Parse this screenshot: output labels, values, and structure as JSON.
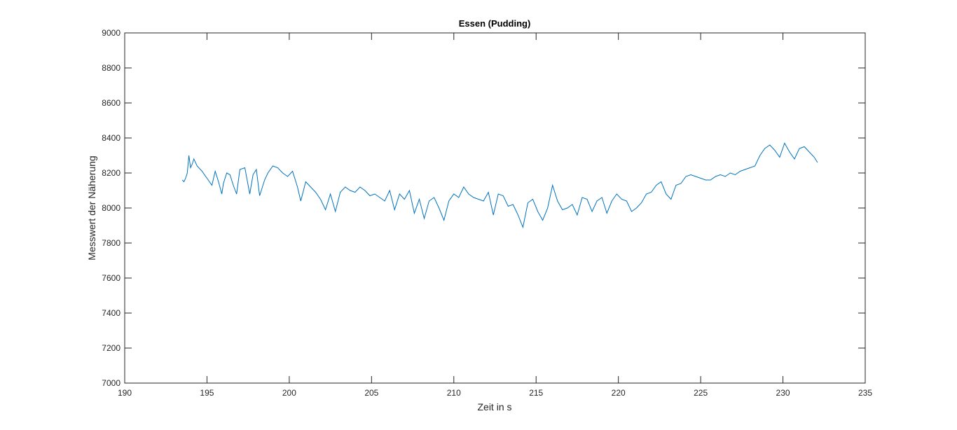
{
  "chart_data": {
    "type": "line",
    "title": "Essen (Pudding)",
    "xlabel": "Zeit in s",
    "ylabel": "Messwert der Näherung",
    "xlim": [
      190,
      235
    ],
    "ylim": [
      7000,
      9000
    ],
    "xticks": [
      190,
      195,
      200,
      205,
      210,
      215,
      220,
      225,
      230,
      235
    ],
    "yticks": [
      7000,
      7200,
      7400,
      7600,
      7800,
      8000,
      8200,
      8400,
      8600,
      8800,
      9000
    ],
    "grid": false,
    "series": [
      {
        "color": "#0072BD",
        "x": [
          193.5,
          193.6,
          193.7,
          193.8,
          193.9,
          194.0,
          194.1,
          194.2,
          194.4,
          194.7,
          195.0,
          195.3,
          195.5,
          195.7,
          195.9,
          196.0,
          196.2,
          196.4,
          196.6,
          196.8,
          197.0,
          197.3,
          197.6,
          197.8,
          198.0,
          198.2,
          198.5,
          198.7,
          199.0,
          199.3,
          199.6,
          199.9,
          200.2,
          200.5,
          200.7,
          201.0,
          201.3,
          201.6,
          201.9,
          202.2,
          202.5,
          202.8,
          203.1,
          203.4,
          203.7,
          204.0,
          204.3,
          204.6,
          204.9,
          205.2,
          205.5,
          205.8,
          206.1,
          206.4,
          206.7,
          207.0,
          207.3,
          207.6,
          207.9,
          208.2,
          208.5,
          208.8,
          209.1,
          209.4,
          209.7,
          210.0,
          210.3,
          210.6,
          210.9,
          211.2,
          211.5,
          211.8,
          212.1,
          212.4,
          212.7,
          213.0,
          213.3,
          213.6,
          213.9,
          214.2,
          214.5,
          214.8,
          215.1,
          215.4,
          215.7,
          216.0,
          216.3,
          216.6,
          216.9,
          217.2,
          217.5,
          217.8,
          218.1,
          218.4,
          218.7,
          219.0,
          219.3,
          219.6,
          219.9,
          220.2,
          220.5,
          220.8,
          221.1,
          221.4,
          221.7,
          222.0,
          222.3,
          222.6,
          222.9,
          223.2,
          223.5,
          223.8,
          224.1,
          224.4,
          224.7,
          225.0,
          225.3,
          225.6,
          225.9,
          226.2,
          226.5,
          226.8,
          227.1,
          227.4,
          227.7,
          228.0,
          228.3,
          228.6,
          228.9,
          229.2,
          229.5,
          229.8,
          230.1,
          230.4,
          230.7,
          231.0,
          231.3,
          231.6,
          231.9,
          232.1
        ],
        "y": [
          8160,
          8150,
          8170,
          8200,
          8300,
          8230,
          8250,
          8280,
          8240,
          8210,
          8170,
          8130,
          8210,
          8150,
          8080,
          8140,
          8200,
          8190,
          8130,
          8080,
          8220,
          8230,
          8080,
          8190,
          8220,
          8070,
          8160,
          8200,
          8240,
          8230,
          8200,
          8180,
          8210,
          8120,
          8040,
          8150,
          8120,
          8090,
          8050,
          7990,
          8080,
          7980,
          8090,
          8120,
          8100,
          8090,
          8120,
          8100,
          8070,
          8080,
          8060,
          8040,
          8100,
          7990,
          8080,
          8050,
          8100,
          7970,
          8050,
          7940,
          8040,
          8060,
          8000,
          7930,
          8040,
          8080,
          8060,
          8120,
          8080,
          8060,
          8050,
          8040,
          8090,
          7960,
          8080,
          8070,
          8010,
          8020,
          7960,
          7890,
          8030,
          8050,
          7980,
          7930,
          8000,
          8130,
          8040,
          7990,
          8000,
          8020,
          7960,
          8060,
          8050,
          7980,
          8040,
          8060,
          7970,
          8040,
          8080,
          8050,
          8040,
          7980,
          8000,
          8030,
          8080,
          8090,
          8130,
          8150,
          8080,
          8050,
          8130,
          8140,
          8180,
          8190,
          8180,
          8170,
          8160,
          8160,
          8180,
          8190,
          8180,
          8200,
          8190,
          8210,
          8220,
          8230,
          8240,
          8300,
          8340,
          8360,
          8330,
          8290,
          8370,
          8320,
          8280,
          8340,
          8350,
          8320,
          8290,
          8260
        ]
      }
    ]
  }
}
